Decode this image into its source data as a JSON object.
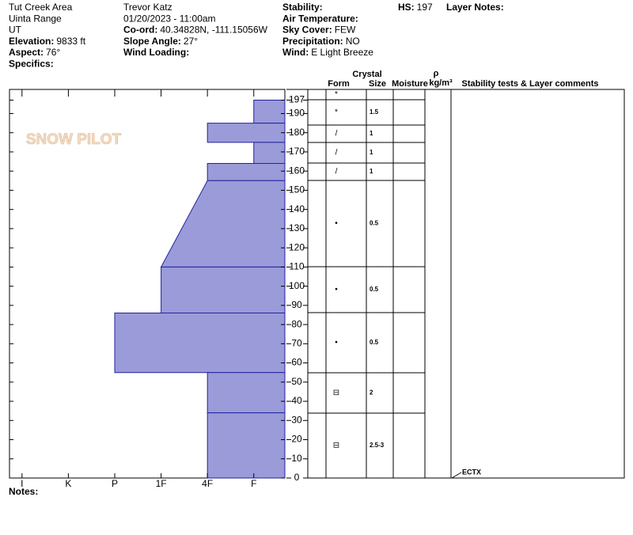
{
  "header": {
    "columns": [
      [
        {
          "value": "Tut Creek Area"
        },
        {
          "value": "Uinta Range"
        },
        {
          "value": "UT"
        },
        {
          "label": "Elevation:",
          "value": "9833 ft"
        },
        {
          "label": "Aspect:",
          "value": "76°"
        },
        {
          "label": "Specifics:"
        }
      ],
      [
        {
          "value": "Trevor Katz"
        },
        {
          "value": "01/20/2023 - 11:00am"
        },
        {
          "label": "Co-ord:",
          "value": "40.34828N, -111.15056W"
        },
        {
          "label": "Slope Angle:",
          "value": "27°"
        },
        {
          "label": "Wind Loading:"
        }
      ],
      [
        {
          "label": "Stability:"
        },
        {
          "label": "Air Temperature:"
        },
        {
          "label": "Sky Cover:",
          "value": "FEW"
        },
        {
          "label": "Precipitation:",
          "value": "NO"
        },
        {
          "label": "Wind:",
          "value": "E Light Breeze"
        }
      ],
      [
        {
          "label": "HS:",
          "value": "197"
        }
      ],
      [
        {
          "label": "Layer Notes:"
        }
      ]
    ],
    "notes": "Notes:",
    "logo": "SNOW PILOT"
  },
  "chart_data": {
    "type": "snow-profile",
    "ylim": [
      0,
      197
    ],
    "yticks": [
      0,
      10,
      20,
      30,
      40,
      50,
      60,
      70,
      80,
      90,
      100,
      110,
      120,
      130,
      140,
      150,
      160,
      170,
      180,
      190,
      197
    ],
    "xlim": [
      6.27,
      0.33
    ],
    "xticks": [
      {
        "value": 6,
        "label": "I"
      },
      {
        "value": 5,
        "label": "K"
      },
      {
        "value": 4,
        "label": "P"
      },
      {
        "value": 3,
        "label": "1F"
      },
      {
        "value": 2,
        "label": "4F"
      },
      {
        "value": 1,
        "label": "F"
      }
    ],
    "color": "#9b9bd9",
    "edge_color": "#2222a0",
    "layers": [
      {
        "top": 197,
        "bottom": 185,
        "hardness_top": 1,
        "hardness_bottom": 1
      },
      {
        "top": 185,
        "bottom": 175,
        "hardness_top": 2,
        "hardness_bottom": 2
      },
      {
        "top": 175,
        "bottom": 164,
        "hardness_top": 1,
        "hardness_bottom": 1
      },
      {
        "top": 164,
        "bottom": 155,
        "hardness_top": 2,
        "hardness_bottom": 2
      },
      {
        "top": 155,
        "bottom": 110,
        "hardness_top": 2,
        "hardness_bottom": 3
      },
      {
        "top": 110,
        "bottom": 86,
        "hardness_top": 3,
        "hardness_bottom": 3
      },
      {
        "top": 86,
        "bottom": 55,
        "hardness_top": 4,
        "hardness_bottom": 4
      },
      {
        "top": 55,
        "bottom": 34,
        "hardness_top": 2,
        "hardness_bottom": 2
      },
      {
        "top": 34,
        "bottom": 0,
        "hardness_top": 2,
        "hardness_bottom": 2
      }
    ],
    "table_headers": {
      "form": "Form",
      "crystal": "Crystal",
      "size": "Size",
      "moisture": "Moisture",
      "rho": "ρ",
      "density": "kg/m³",
      "comments": "Stability tests & Layer comments"
    },
    "crystal_rows": [
      {
        "form": "*"
      },
      {
        "form": "*",
        "size": "1.5"
      },
      {
        "form": "/",
        "size": "1"
      },
      {
        "form": "/",
        "size": "1"
      },
      {
        "form": "/",
        "size": "1"
      },
      {
        "form": "•",
        "size": "0.5"
      },
      {
        "form": "•",
        "size": "0.5"
      },
      {
        "form": "•",
        "size": "0.5"
      },
      {
        "form": "⊟",
        "size": "2"
      },
      {
        "form": "⊟",
        "size": "2.5-3"
      }
    ],
    "stability_tests": [
      {
        "depth": 0,
        "label": "ECTX"
      }
    ]
  }
}
